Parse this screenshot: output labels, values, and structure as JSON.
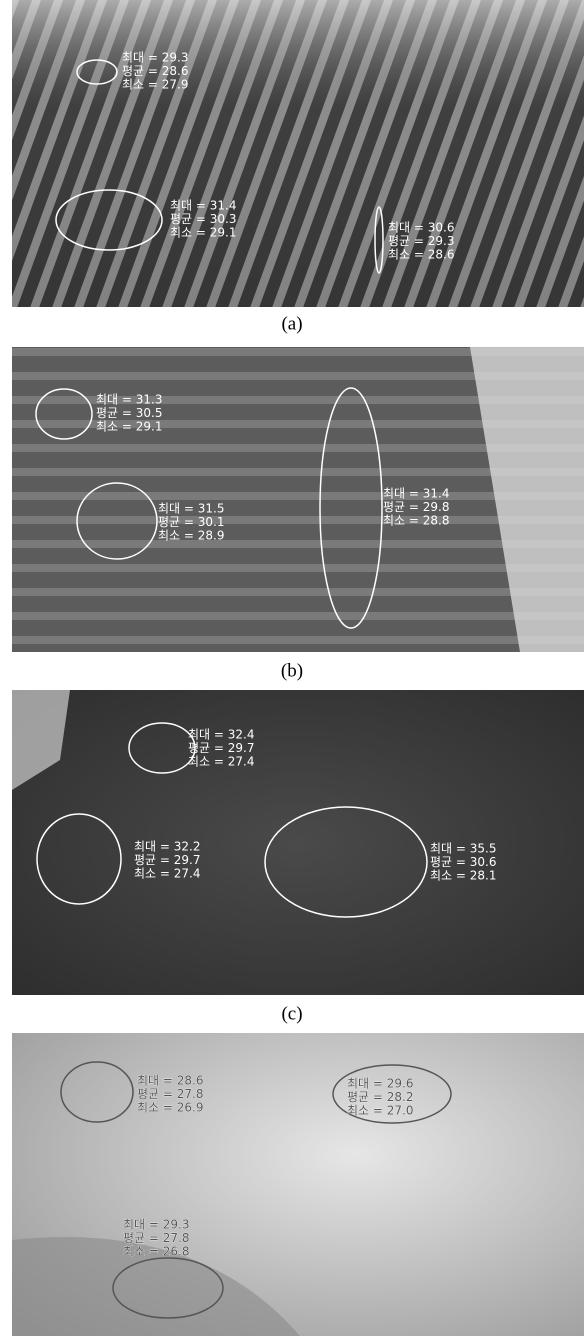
{
  "panels": [
    {
      "caption": "(a)",
      "regions": [
        {
          "lines": [
            "최대 = 29.3",
            "평균 = 28.6",
            "최소 = 27.9"
          ]
        },
        {
          "lines": [
            "최대 = 31.4",
            "평균 = 30.3",
            "최소 = 29.1"
          ]
        },
        {
          "lines": [
            "최대 = 30.6",
            "평균 = 29.3",
            "최소 = 28.6"
          ]
        }
      ]
    },
    {
      "caption": "(b)",
      "regions": [
        {
          "lines": [
            "최대 = 31.3",
            "평균 = 30.5",
            "최소 = 29.1"
          ]
        },
        {
          "lines": [
            "최대 = 31.5",
            "평균 = 30.1",
            "최소 = 28.9"
          ]
        },
        {
          "lines": [
            "최대 = 31.4",
            "평균 = 29.8",
            "최소 = 28.8"
          ]
        }
      ]
    },
    {
      "caption": "(c)",
      "regions": [
        {
          "lines": [
            "최대 = 32.4",
            "평균 = 29.7",
            "최소 = 27.4"
          ]
        },
        {
          "lines": [
            "최대 = 32.2",
            "평균 = 29.7",
            "최소 = 27.4"
          ]
        },
        {
          "lines": [
            "최대 = 35.5",
            "평균 = 30.6",
            "최소 = 28.1"
          ]
        }
      ]
    },
    {
      "regions": [
        {
          "lines": [
            "최대 = 28.6",
            "평균 = 27.8",
            "최소 = 26.9"
          ]
        },
        {
          "lines": [
            "최대 = 29.6",
            "평균 = 28.2",
            "최소 = 27.0"
          ]
        },
        {
          "lines": [
            "최대 = 29.3",
            "평균 = 27.8",
            "최소 = 26.8"
          ]
        }
      ]
    }
  ]
}
